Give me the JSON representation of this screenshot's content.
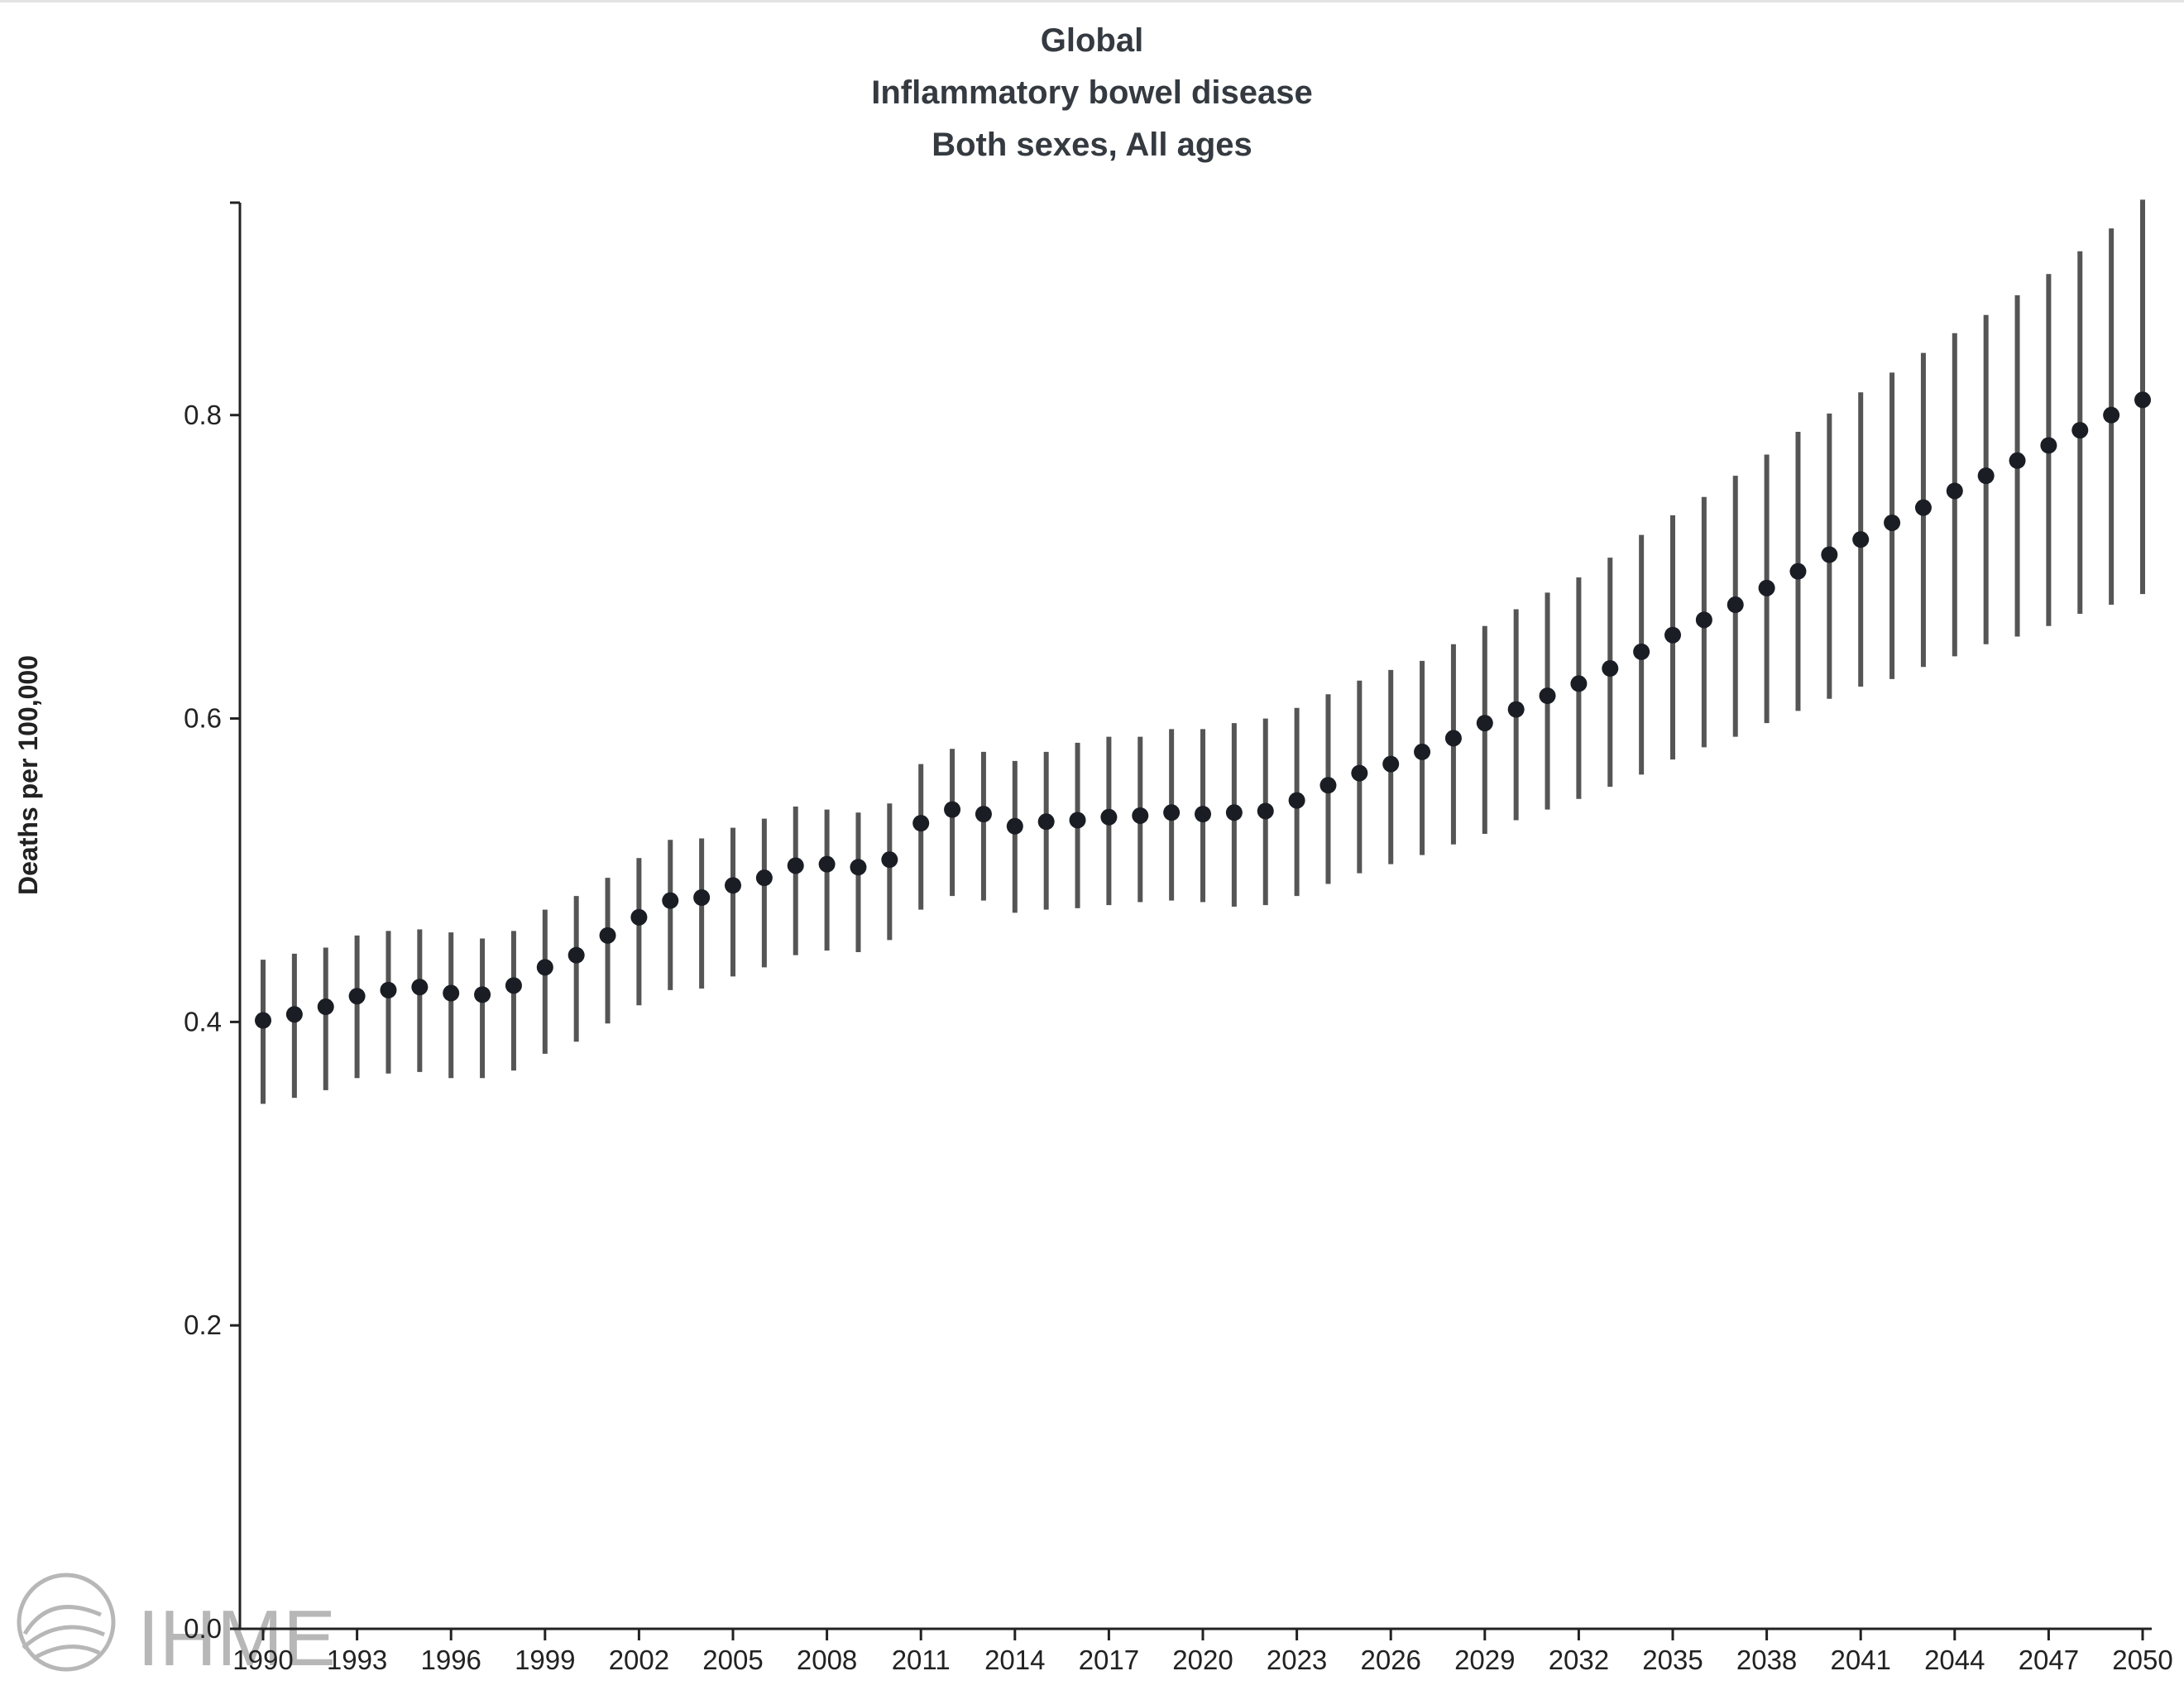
{
  "title_lines": [
    "Global",
    "Inflammatory bowel disease",
    "Both sexes, All ages"
  ],
  "logo_text": "IHME",
  "colors": {
    "point": "#1a1e24",
    "error_bar": "#555555",
    "axis": "#222222",
    "title": "#343a40",
    "logo": "#b7b7b7"
  },
  "chart_data": {
    "type": "scatter",
    "style": "point with uncertainty interval",
    "title": "Global\nInflammatory bowel disease\nBoth sexes, All ages",
    "xlabel": "",
    "ylabel": "Deaths per 100,000",
    "xlim": [
      1990,
      2050
    ],
    "ylim": [
      0.0,
      0.94
    ],
    "x_tick_labels": [
      "1990",
      "1993",
      "1996",
      "1999",
      "2002",
      "2005",
      "2008",
      "2011",
      "2014",
      "2017",
      "2020",
      "2023",
      "2026",
      "2029",
      "2032",
      "2035",
      "2038",
      "2041",
      "2044",
      "2047",
      "2050"
    ],
    "y_tick_labels": [
      "0.0",
      "0.2",
      "0.4",
      "0.6",
      "0.8"
    ],
    "grid": false,
    "legend": "none",
    "series": [
      {
        "x": [
          1990,
          1991,
          1992,
          1993,
          1994,
          1995,
          1996,
          1997,
          1998,
          1999,
          2000,
          2001,
          2002,
          2003,
          2004,
          2005,
          2006,
          2007,
          2008,
          2009,
          2010,
          2011,
          2012,
          2013,
          2014,
          2015,
          2016,
          2017,
          2018,
          2019,
          2020,
          2021,
          2022,
          2023,
          2024,
          2025,
          2026,
          2027,
          2028,
          2029,
          2030,
          2031,
          2032,
          2033,
          2034,
          2035,
          2036,
          2037,
          2038,
          2039,
          2040,
          2041,
          2042,
          2043,
          2044,
          2045,
          2046,
          2047,
          2048,
          2049,
          2050
        ],
        "y": [
          0.401,
          0.405,
          0.41,
          0.417,
          0.421,
          0.423,
          0.419,
          0.418,
          0.424,
          0.436,
          0.444,
          0.457,
          0.469,
          0.48,
          0.482,
          0.49,
          0.495,
          0.503,
          0.504,
          0.502,
          0.507,
          0.531,
          0.54,
          0.537,
          0.529,
          0.532,
          0.533,
          0.535,
          0.536,
          0.538,
          0.537,
          0.538,
          0.539,
          0.546,
          0.556,
          0.564,
          0.57,
          0.578,
          0.587,
          0.597,
          0.606,
          0.615,
          0.623,
          0.633,
          0.644,
          0.655,
          0.665,
          0.675,
          0.686,
          0.697,
          0.708,
          0.718,
          0.729,
          0.739,
          0.75,
          0.76,
          0.77,
          0.78,
          0.79,
          0.8,
          0.81
        ],
        "lower": [
          0.346,
          0.35,
          0.355,
          0.363,
          0.366,
          0.367,
          0.363,
          0.363,
          0.368,
          0.379,
          0.387,
          0.399,
          0.411,
          0.421,
          0.422,
          0.43,
          0.436,
          0.444,
          0.447,
          0.446,
          0.454,
          0.474,
          0.483,
          0.48,
          0.472,
          0.474,
          0.475,
          0.477,
          0.479,
          0.48,
          0.479,
          0.476,
          0.477,
          0.483,
          0.491,
          0.498,
          0.504,
          0.51,
          0.517,
          0.524,
          0.533,
          0.54,
          0.547,
          0.555,
          0.563,
          0.573,
          0.581,
          0.588,
          0.597,
          0.605,
          0.613,
          0.621,
          0.626,
          0.634,
          0.641,
          0.649,
          0.654,
          0.661,
          0.669,
          0.675,
          0.682
        ],
        "upper": [
          0.441,
          0.445,
          0.449,
          0.457,
          0.46,
          0.461,
          0.459,
          0.455,
          0.46,
          0.474,
          0.483,
          0.495,
          0.508,
          0.52,
          0.521,
          0.528,
          0.534,
          0.542,
          0.54,
          0.538,
          0.544,
          0.57,
          0.58,
          0.578,
          0.572,
          0.578,
          0.584,
          0.588,
          0.588,
          0.593,
          0.593,
          0.597,
          0.6,
          0.607,
          0.616,
          0.625,
          0.632,
          0.638,
          0.649,
          0.661,
          0.672,
          0.683,
          0.693,
          0.706,
          0.721,
          0.734,
          0.746,
          0.76,
          0.774,
          0.789,
          0.801,
          0.815,
          0.828,
          0.841,
          0.854,
          0.866,
          0.879,
          0.893,
          0.908,
          0.923,
          0.942
        ]
      }
    ]
  }
}
